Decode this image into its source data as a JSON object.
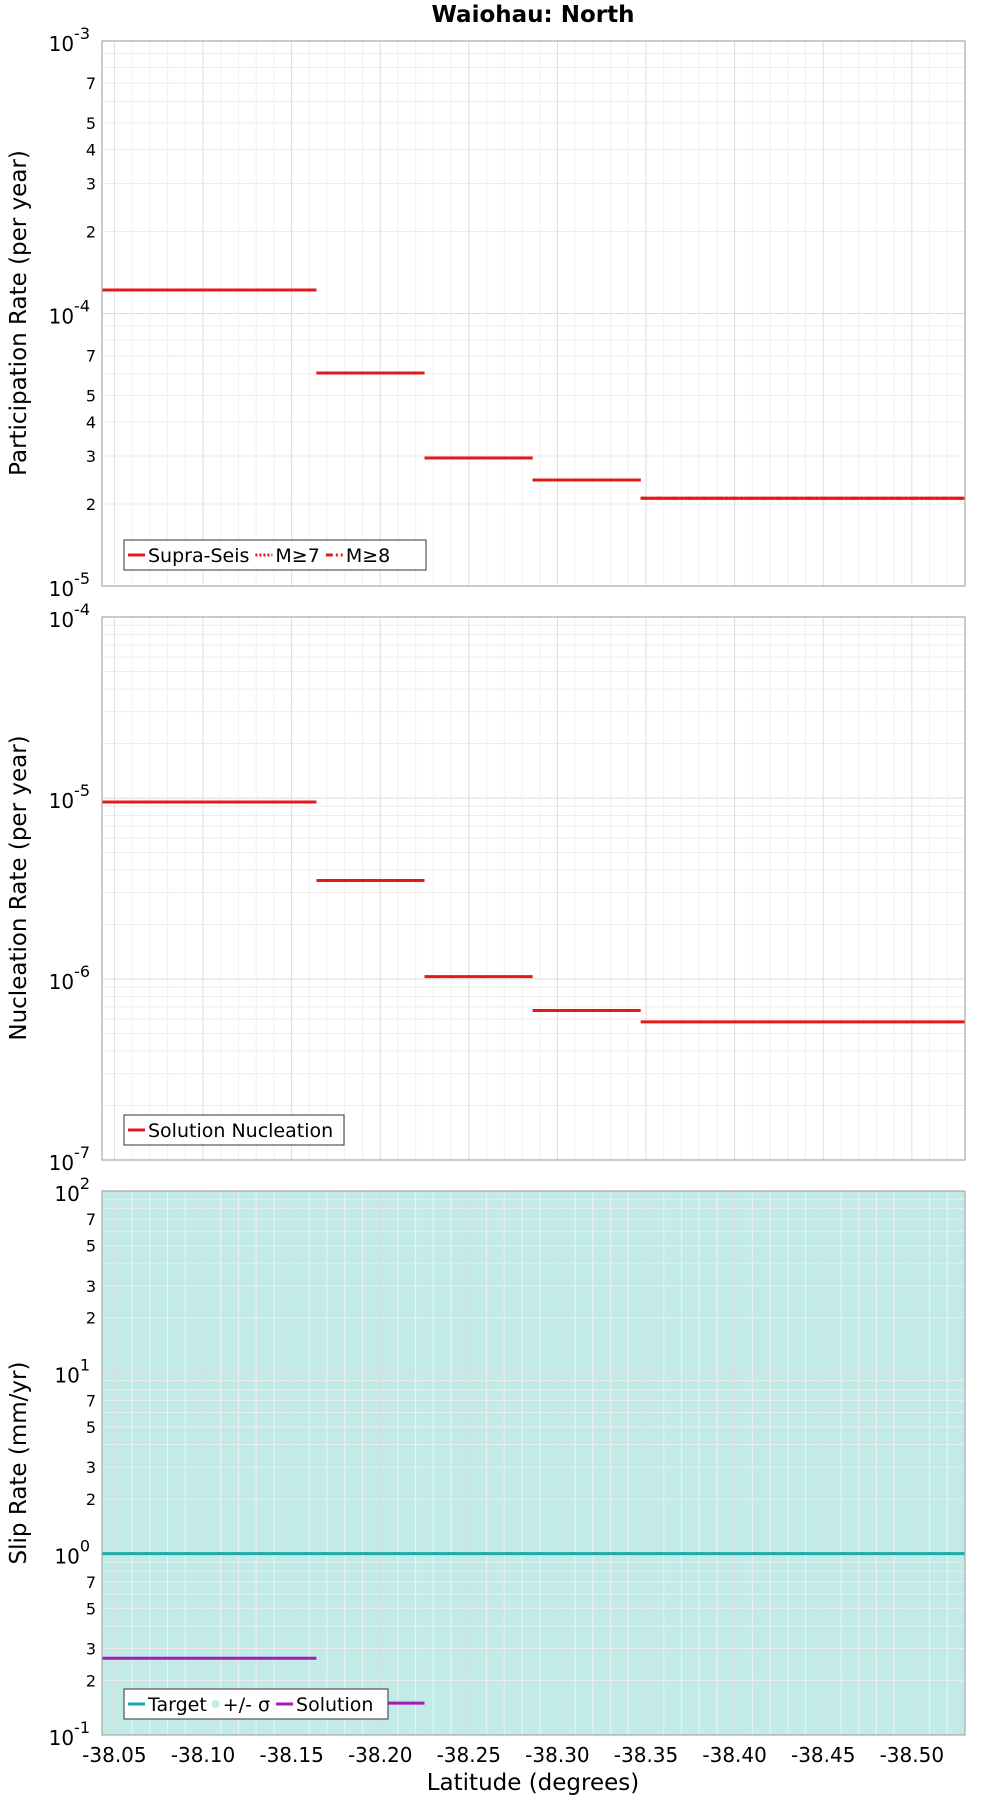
{
  "figure_title": "Waiohau: North",
  "chart_data": [
    {
      "type": "line",
      "ylabel": "Participation Rate (per year)",
      "yscale": "log",
      "ylim": [
        1e-05,
        0.001
      ],
      "xlim": [
        -38.043,
        -38.53
      ],
      "grid": true,
      "legend_position": "bottom-left",
      "y_major_ticks": [
        {
          "value": 1e-05,
          "base": "10",
          "exp": "-5"
        },
        {
          "value": 0.0001,
          "base": "10",
          "exp": "-4"
        },
        {
          "value": 0.001,
          "base": "10",
          "exp": "-3"
        }
      ],
      "y_minor_labels": [
        {
          "value": 2e-05,
          "label": "2"
        },
        {
          "value": 3e-05,
          "label": "3"
        },
        {
          "value": 4e-05,
          "label": "4"
        },
        {
          "value": 5e-05,
          "label": "5"
        },
        {
          "value": 7e-05,
          "label": "7"
        },
        {
          "value": 0.0002,
          "label": "2"
        },
        {
          "value": 0.0003,
          "label": "3"
        },
        {
          "value": 0.0004,
          "label": "4"
        },
        {
          "value": 0.0005,
          "label": "5"
        },
        {
          "value": 0.0007,
          "label": "7"
        }
      ],
      "series": [
        {
          "name": "Supra-Seis",
          "color": "#e61919",
          "dash": "solid",
          "segments": [
            {
              "x0": -38.043,
              "x1": -38.164,
              "y": 0.000122
            },
            {
              "x0": -38.164,
              "x1": -38.225,
              "y": 6.05e-05
            },
            {
              "x0": -38.225,
              "x1": -38.286,
              "y": 2.95e-05
            },
            {
              "x0": -38.286,
              "x1": -38.347,
              "y": 2.45e-05
            },
            {
              "x0": -38.347,
              "x1": -38.53,
              "y": 2.1e-05
            }
          ]
        },
        {
          "name": "M≥7",
          "color": "#e61919",
          "dash": "dotted",
          "segments": [
            {
              "x0": -38.043,
              "x1": -38.164,
              "y": 0.000122
            },
            {
              "x0": -38.164,
              "x1": -38.225,
              "y": 6.05e-05
            },
            {
              "x0": -38.225,
              "x1": -38.286,
              "y": 2.95e-05
            },
            {
              "x0": -38.286,
              "x1": -38.347,
              "y": 2.45e-05
            },
            {
              "x0": -38.347,
              "x1": -38.53,
              "y": 2.1e-05
            }
          ]
        },
        {
          "name": "M≥8",
          "color": "#e61919",
          "dash": "dashdot",
          "segments": [
            {
              "x0": -38.043,
              "x1": -38.164,
              "y": 0.000122
            },
            {
              "x0": -38.164,
              "x1": -38.225,
              "y": 6.05e-05
            },
            {
              "x0": -38.225,
              "x1": -38.286,
              "y": 2.95e-05
            },
            {
              "x0": -38.286,
              "x1": -38.347,
              "y": 2.45e-05
            },
            {
              "x0": -38.347,
              "x1": -38.53,
              "y": 2.1e-05
            }
          ]
        }
      ]
    },
    {
      "type": "line",
      "ylabel": "Nucleation Rate (per year)",
      "yscale": "log",
      "ylim": [
        1e-07,
        0.0001
      ],
      "xlim": [
        -38.043,
        -38.53
      ],
      "grid": true,
      "legend_position": "bottom-left",
      "y_major_ticks": [
        {
          "value": 1e-07,
          "base": "10",
          "exp": "-7"
        },
        {
          "value": 1e-06,
          "base": "10",
          "exp": "-6"
        },
        {
          "value": 1e-05,
          "base": "10",
          "exp": "-5"
        },
        {
          "value": 0.0001,
          "base": "10",
          "exp": "-4"
        }
      ],
      "y_minor_labels": [],
      "series": [
        {
          "name": "Solution Nucleation",
          "color": "#e61919",
          "dash": "solid",
          "segments": [
            {
              "x0": -38.043,
              "x1": -38.164,
              "y": 9.5e-06
            },
            {
              "x0": -38.164,
              "x1": -38.225,
              "y": 3.5e-06
            },
            {
              "x0": -38.225,
              "x1": -38.286,
              "y": 1.03e-06
            },
            {
              "x0": -38.286,
              "x1": -38.347,
              "y": 6.7e-07
            },
            {
              "x0": -38.347,
              "x1": -38.53,
              "y": 5.8e-07
            }
          ]
        }
      ]
    },
    {
      "type": "line",
      "ylabel": "Slip Rate (mm/yr)",
      "xlabel": "Latitude (degrees)",
      "yscale": "log",
      "ylim": [
        0.1,
        100
      ],
      "xlim": [
        -38.043,
        -38.53
      ],
      "grid": true,
      "legend_position": "bottom-left",
      "x_ticks": [
        {
          "value": -38.05,
          "label": "-38.05"
        },
        {
          "value": -38.1,
          "label": "-38.10"
        },
        {
          "value": -38.15,
          "label": "-38.15"
        },
        {
          "value": -38.2,
          "label": "-38.20"
        },
        {
          "value": -38.25,
          "label": "-38.25"
        },
        {
          "value": -38.3,
          "label": "-38.30"
        },
        {
          "value": -38.35,
          "label": "-38.35"
        },
        {
          "value": -38.4,
          "label": "-38.40"
        },
        {
          "value": -38.45,
          "label": "-38.45"
        },
        {
          "value": -38.5,
          "label": "-38.50"
        }
      ],
      "y_major_ticks": [
        {
          "value": 0.1,
          "base": "10",
          "exp": "-1"
        },
        {
          "value": 1,
          "base": "10",
          "exp": "0"
        },
        {
          "value": 10,
          "base": "10",
          "exp": "1"
        },
        {
          "value": 100,
          "base": "10",
          "exp": "2"
        }
      ],
      "y_minor_labels": [
        {
          "value": 0.2,
          "label": "2"
        },
        {
          "value": 0.3,
          "label": "3"
        },
        {
          "value": 0.5,
          "label": "5"
        },
        {
          "value": 0.7,
          "label": "7"
        },
        {
          "value": 2,
          "label": "2"
        },
        {
          "value": 3,
          "label": "3"
        },
        {
          "value": 5,
          "label": "5"
        },
        {
          "value": 7,
          "label": "7"
        },
        {
          "value": 20,
          "label": "2"
        },
        {
          "value": 30,
          "label": "3"
        },
        {
          "value": 50,
          "label": "5"
        },
        {
          "value": 70,
          "label": "7"
        }
      ],
      "band": {
        "name": "+/- σ",
        "color": "#c2ebe8",
        "y0": 0.1,
        "y1": 100
      },
      "series": [
        {
          "name": "Target",
          "color": "#19aaaa",
          "dash": "solid",
          "segments": [
            {
              "x0": -38.043,
              "x1": -38.53,
              "y": 1.0
            }
          ]
        },
        {
          "name": "Solution",
          "color": "#a519b4",
          "dash": "solid",
          "segments": [
            {
              "x0": -38.043,
              "x1": -38.164,
              "y": 0.265
            },
            {
              "x0": -38.164,
              "x1": -38.225,
              "y": 0.15
            }
          ]
        }
      ]
    }
  ]
}
